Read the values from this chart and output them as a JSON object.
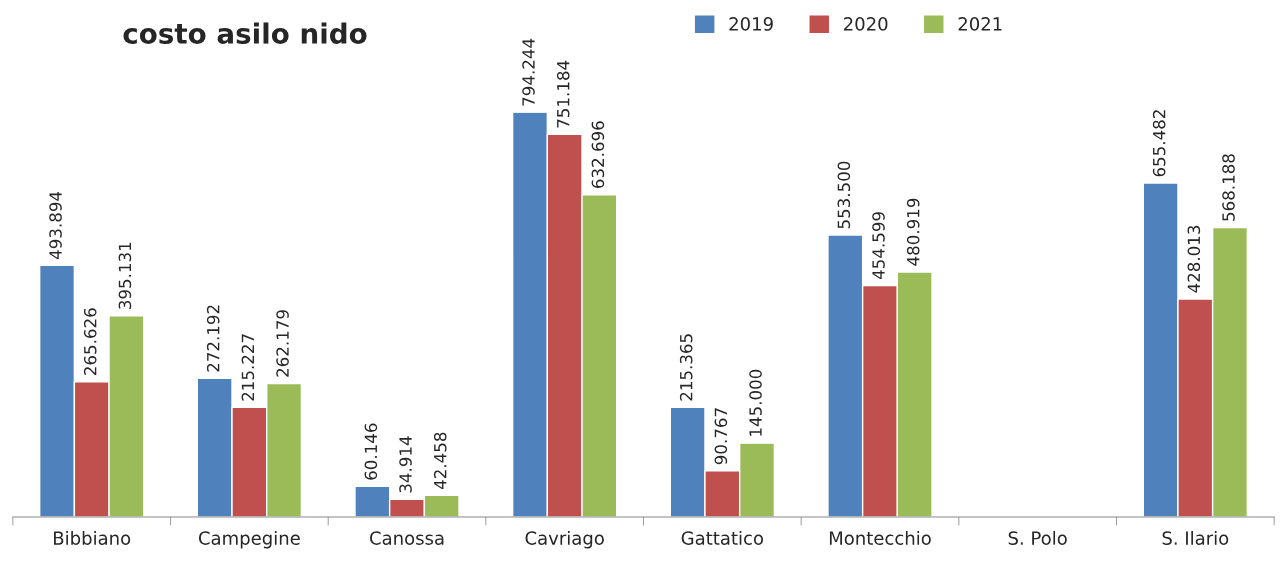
{
  "chart_data": {
    "type": "bar",
    "title": "costo asilo nido",
    "categories": [
      "Bibbiano",
      "Campegine",
      "Canossa",
      "Cavriago",
      "Gattatico",
      "Montecchio",
      "S. Polo",
      "S. Ilario"
    ],
    "series": [
      {
        "name": "2019",
        "color": "#4f81bd",
        "values": [
          493894,
          272192,
          60146,
          794244,
          215365,
          553500,
          null,
          655482
        ],
        "value_labels": [
          "493.894",
          "272.192",
          "60.146",
          "794.244",
          "215.365",
          "553.500",
          null,
          "655.482"
        ]
      },
      {
        "name": "2020",
        "color": "#c0504d",
        "values": [
          265626,
          215227,
          34914,
          751184,
          90767,
          454599,
          null,
          428013
        ],
        "value_labels": [
          "265.626",
          "215.227",
          "34.914",
          "751.184",
          "90.767",
          "454.599",
          null,
          "428.013"
        ]
      },
      {
        "name": "2021",
        "color": "#9bbb59",
        "values": [
          395131,
          262179,
          42458,
          632696,
          145000,
          480919,
          null,
          568188
        ],
        "value_labels": [
          "395.131",
          "262.179",
          "42.458",
          "632.696",
          "145.000",
          "480.919",
          null,
          "568.188"
        ]
      }
    ],
    "legend": "top",
    "grid": false
  }
}
